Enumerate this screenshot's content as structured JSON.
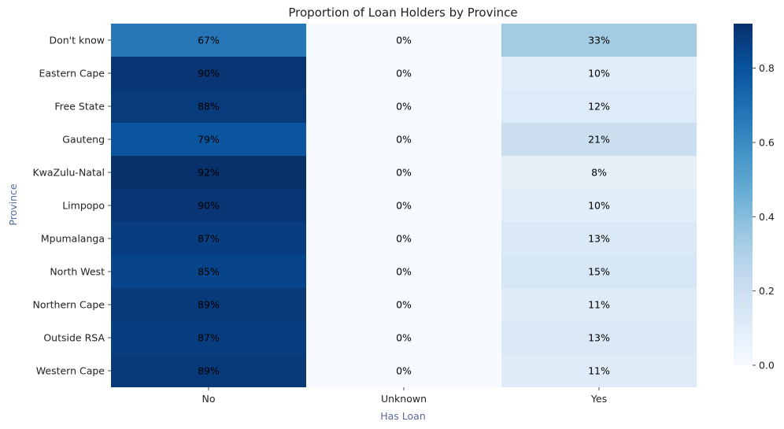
{
  "chart_data": {
    "type": "heatmap",
    "title": "Proportion of Loan Holders by Province",
    "xlabel": "Has Loan",
    "ylabel": "Province",
    "x_categories": [
      "No",
      "Unknown",
      "Yes"
    ],
    "y_categories": [
      "Don't know",
      "Eastern Cape",
      "Free State",
      "Gauteng",
      "KwaZulu-Natal",
      "Limpopo",
      "Mpumalanga",
      "North West",
      "Northern Cape",
      "Outside RSA",
      "Western Cape"
    ],
    "values": [
      [
        0.67,
        0.0,
        0.33
      ],
      [
        0.9,
        0.0,
        0.1
      ],
      [
        0.88,
        0.0,
        0.12
      ],
      [
        0.79,
        0.0,
        0.21
      ],
      [
        0.92,
        0.0,
        0.08
      ],
      [
        0.9,
        0.0,
        0.1
      ],
      [
        0.87,
        0.0,
        0.13
      ],
      [
        0.85,
        0.0,
        0.15
      ],
      [
        0.89,
        0.0,
        0.11
      ],
      [
        0.87,
        0.0,
        0.13
      ],
      [
        0.89,
        0.0,
        0.11
      ]
    ],
    "cell_labels": [
      [
        "67%",
        "0%",
        "33%"
      ],
      [
        "90%",
        "0%",
        "10%"
      ],
      [
        "88%",
        "0%",
        "12%"
      ],
      [
        "79%",
        "0%",
        "21%"
      ],
      [
        "92%",
        "0%",
        "8%"
      ],
      [
        "90%",
        "0%",
        "10%"
      ],
      [
        "87%",
        "0%",
        "13%"
      ],
      [
        "85%",
        "0%",
        "15%"
      ],
      [
        "89%",
        "0%",
        "11%"
      ],
      [
        "87%",
        "0%",
        "13%"
      ],
      [
        "89%",
        "0%",
        "11%"
      ]
    ],
    "colormap": "Blues",
    "vmin": 0.0,
    "vmax": 0.92,
    "colorbar_ticks": [
      "0.0",
      "0.2",
      "0.4",
      "0.6",
      "0.8"
    ],
    "colorbar_tick_values": [
      0.0,
      0.2,
      0.4,
      0.6,
      0.8
    ]
  }
}
